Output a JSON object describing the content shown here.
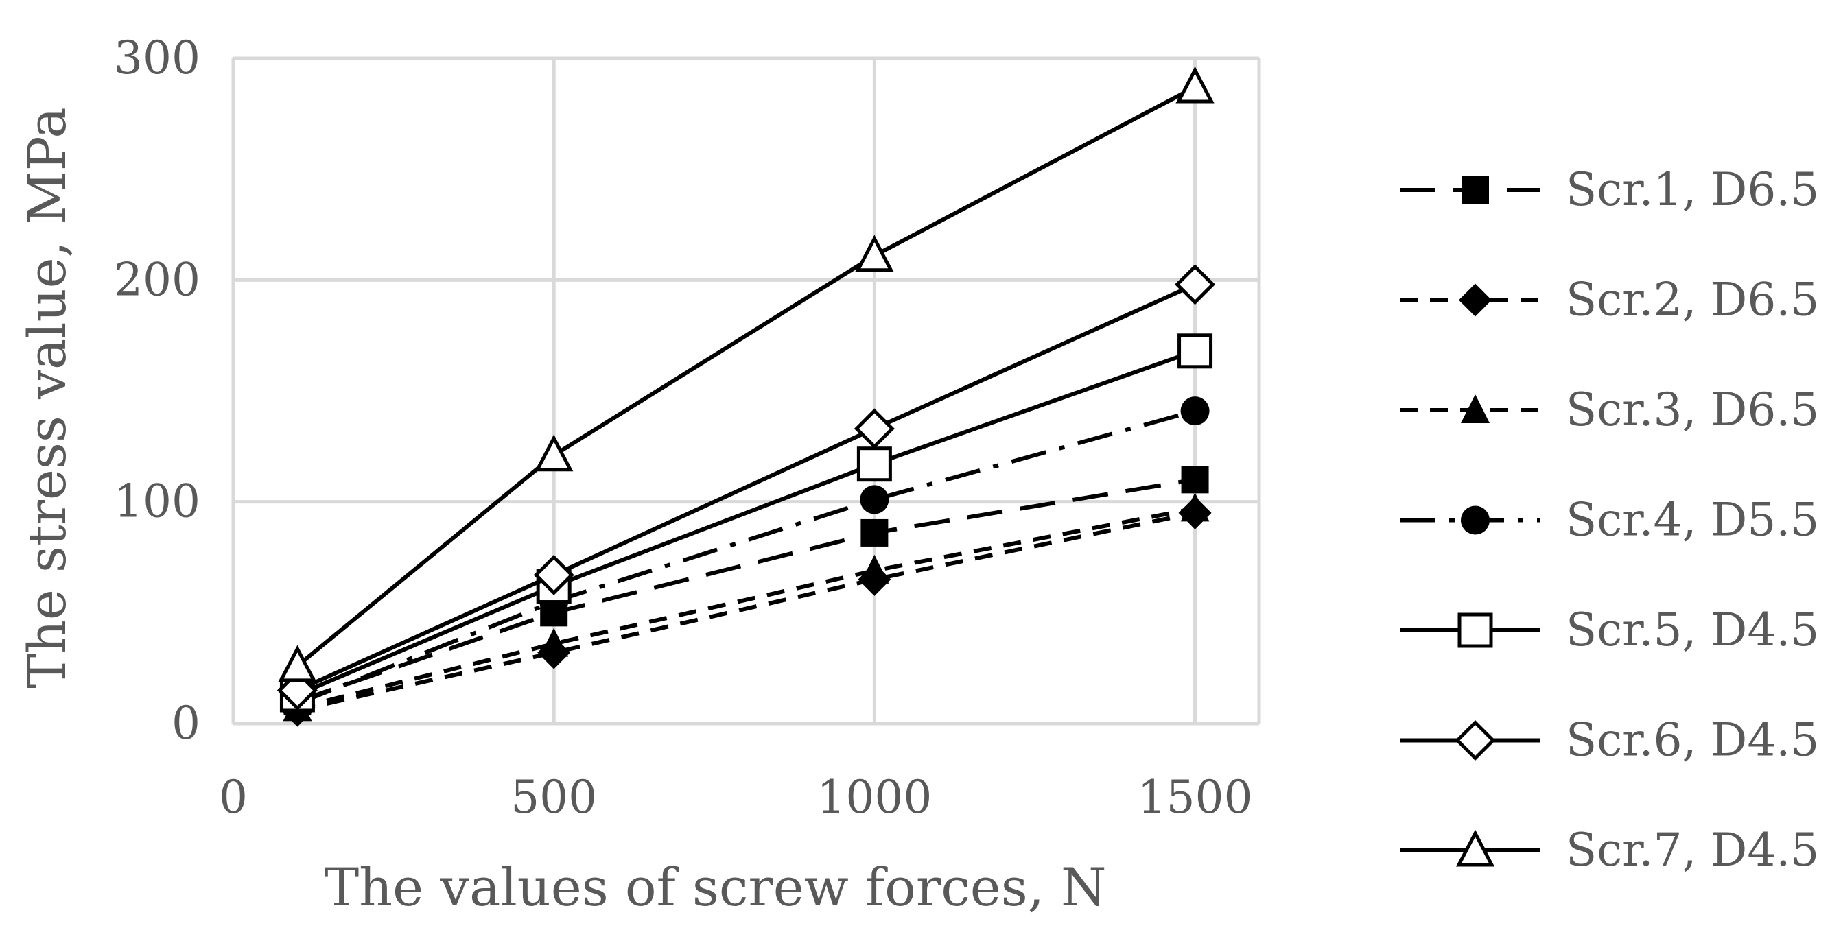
{
  "chart_data": {
    "type": "line",
    "title": "",
    "xlabel": "The values of screw forces, N",
    "ylabel": "The stress value, MPa",
    "xlim": [
      0,
      1600
    ],
    "ylim": [
      0,
      300
    ],
    "xticks": [
      "0",
      "500",
      "1000",
      "1500"
    ],
    "yticks": [
      "0",
      "100",
      "200",
      "300"
    ],
    "grid": true,
    "legend_position": "right",
    "x": [
      100,
      500,
      1000,
      1500
    ],
    "series": [
      {
        "name": "Scr.1, D6.5",
        "values": [
          10,
          50,
          86,
          110
        ],
        "marker": "square-filled",
        "dash": "long-dash"
      },
      {
        "name": "Scr.2, D6.5",
        "values": [
          6,
          32,
          65,
          95
        ],
        "marker": "diamond-filled",
        "dash": "dash"
      },
      {
        "name": "Scr.3, D6.5",
        "values": [
          7,
          36,
          69,
          97
        ],
        "marker": "triangle-filled",
        "dash": "dash"
      },
      {
        "name": "Scr.4, D5.5",
        "values": [
          9,
          55,
          101,
          141
        ],
        "marker": "circle-filled",
        "dash": "long-dash-dot"
      },
      {
        "name": "Scr.5, D4.5",
        "values": [
          13,
          62,
          117,
          168
        ],
        "marker": "square-open",
        "dash": "solid"
      },
      {
        "name": "Scr.6, D4.5",
        "values": [
          15,
          67,
          133,
          198
        ],
        "marker": "diamond-open",
        "dash": "solid"
      },
      {
        "name": "Scr.7, D4.5",
        "values": [
          26,
          121,
          211,
          287
        ],
        "marker": "triangle-open",
        "dash": "solid"
      }
    ],
    "colors": {
      "line": "#000000",
      "grid": "#d9d9d9",
      "text": "#595959"
    }
  }
}
